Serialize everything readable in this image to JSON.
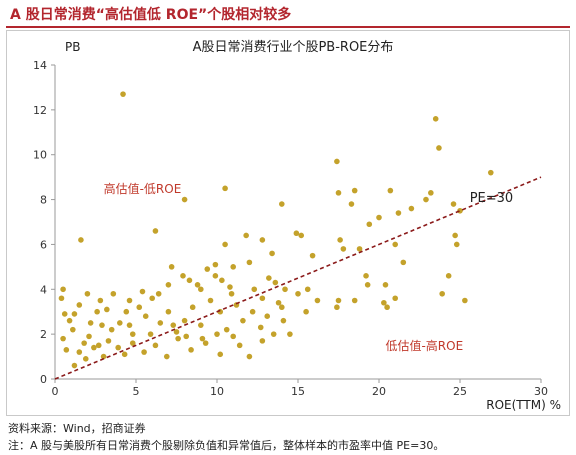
{
  "header": {
    "title": "A 股日常消费“高估值低 ROE”个股相对较多"
  },
  "footer": {
    "source": "资料来源：Wind，招商证券",
    "note": "注：A 股与美股所有日常消费个股剔除负值和异常值后，整体样本的市盈率中值 PE=30。"
  },
  "colors": {
    "accent": "#b3262e",
    "dots": "#c4a22b",
    "trend": "#8b1a1a",
    "text_red": "#c0392b"
  },
  "chart_data": {
    "type": "scatter",
    "title": "A股日常消费行业个股PB-ROE分布",
    "ylabel": "PB",
    "xlabel": "ROE(TTM) %",
    "xlim": [
      0,
      30
    ],
    "ylim": [
      0,
      14
    ],
    "xticks": [
      "0",
      "5",
      "10",
      "15",
      "20",
      "25",
      "30"
    ],
    "yticks": [
      "0",
      "2",
      "4",
      "6",
      "8",
      "10",
      "12",
      "14"
    ],
    "grid": false,
    "trendline": {
      "label": "PE=30",
      "slope": 0.3,
      "intercept": 0
    },
    "annotations": [
      {
        "text": "高估值-低ROE",
        "x": 3,
        "y": 8.3
      },
      {
        "text": "低估值-高ROE",
        "x": 20.4,
        "y": 1.3
      }
    ],
    "points": [
      [
        4.2,
        12.7
      ],
      [
        1.6,
        6.2
      ],
      [
        6.2,
        6.6
      ],
      [
        8.0,
        8.0
      ],
      [
        10.5,
        8.5
      ],
      [
        23.5,
        11.6
      ],
      [
        23.7,
        10.3
      ],
      [
        17.4,
        9.7
      ],
      [
        26.9,
        9.2
      ],
      [
        17.5,
        8.3
      ],
      [
        18.5,
        8.4
      ],
      [
        18.3,
        7.8
      ],
      [
        20.7,
        8.4
      ],
      [
        22.9,
        8.0
      ],
      [
        23.2,
        8.3
      ],
      [
        24.6,
        7.8
      ],
      [
        25.0,
        7.5
      ],
      [
        14.0,
        7.8
      ],
      [
        20.0,
        7.2
      ],
      [
        21.2,
        7.4
      ],
      [
        22.0,
        7.6
      ],
      [
        19.4,
        6.9
      ],
      [
        24.7,
        6.4
      ],
      [
        11.8,
        6.4
      ],
      [
        14.9,
        6.5
      ],
      [
        15.2,
        6.4
      ],
      [
        12.8,
        6.2
      ],
      [
        10.5,
        6.0
      ],
      [
        13.4,
        5.6
      ],
      [
        17.6,
        6.2
      ],
      [
        18.8,
        5.8
      ],
      [
        21.0,
        6.0
      ],
      [
        24.8,
        6.0
      ],
      [
        15.9,
        5.5
      ],
      [
        17.8,
        5.8
      ],
      [
        12.0,
        5.2
      ],
      [
        11.0,
        5.0
      ],
      [
        7.2,
        5.0
      ],
      [
        7.9,
        4.6
      ],
      [
        9.4,
        4.9
      ],
      [
        9.9,
        5.1
      ],
      [
        10.3,
        4.4
      ],
      [
        8.3,
        4.4
      ],
      [
        8.8,
        4.2
      ],
      [
        9.9,
        4.6
      ],
      [
        10.8,
        4.1
      ],
      [
        12.3,
        4.0
      ],
      [
        13.2,
        4.5
      ],
      [
        13.6,
        4.3
      ],
      [
        14.2,
        4.0
      ],
      [
        15.0,
        3.8
      ],
      [
        19.2,
        4.6
      ],
      [
        19.3,
        4.2
      ],
      [
        20.4,
        4.2
      ],
      [
        21.5,
        5.2
      ],
      [
        24.3,
        4.6
      ],
      [
        23.9,
        3.8
      ],
      [
        25.3,
        3.5
      ],
      [
        17.5,
        3.5
      ],
      [
        18.5,
        3.5
      ],
      [
        20.3,
        3.4
      ],
      [
        21.0,
        3.6
      ],
      [
        17.4,
        3.2
      ],
      [
        20.5,
        3.2
      ],
      [
        15.5,
        3.0
      ],
      [
        14.0,
        3.2
      ],
      [
        0.5,
        4.0
      ],
      [
        0.4,
        3.6
      ],
      [
        0.6,
        2.9
      ],
      [
        0.9,
        2.6
      ],
      [
        1.2,
        2.9
      ],
      [
        1.5,
        3.3
      ],
      [
        1.1,
        2.2
      ],
      [
        0.5,
        1.8
      ],
      [
        1.8,
        1.6
      ],
      [
        2.2,
        2.5
      ],
      [
        2.6,
        3.0
      ],
      [
        2.4,
        1.4
      ],
      [
        2.8,
        3.5
      ],
      [
        3.2,
        3.1
      ],
      [
        3.5,
        2.2
      ],
      [
        4.0,
        2.5
      ],
      [
        4.4,
        3.0
      ],
      [
        4.8,
        2.0
      ],
      [
        5.2,
        3.2
      ],
      [
        5.6,
        2.8
      ],
      [
        6.0,
        3.6
      ],
      [
        6.5,
        2.5
      ],
      [
        7.0,
        3.0
      ],
      [
        7.5,
        2.1
      ],
      [
        8.0,
        2.6
      ],
      [
        8.5,
        3.2
      ],
      [
        9.0,
        2.4
      ],
      [
        9.6,
        3.5
      ],
      [
        10.2,
        3.0
      ],
      [
        10.6,
        2.2
      ],
      [
        11.2,
        3.3
      ],
      [
        11.6,
        2.6
      ],
      [
        12.2,
        3.0
      ],
      [
        12.7,
        2.3
      ],
      [
        13.1,
        2.8
      ],
      [
        13.5,
        2.0
      ],
      [
        14.1,
        2.6
      ],
      [
        14.5,
        2.0
      ],
      [
        1.5,
        1.2
      ],
      [
        1.9,
        0.9
      ],
      [
        2.7,
        1.5
      ],
      [
        3.0,
        1.0
      ],
      [
        3.9,
        1.4
      ],
      [
        4.3,
        1.1
      ],
      [
        4.8,
        1.6
      ],
      [
        5.5,
        1.2
      ],
      [
        6.2,
        1.5
      ],
      [
        6.9,
        1.0
      ],
      [
        7.6,
        1.8
      ],
      [
        8.4,
        1.3
      ],
      [
        9.3,
        1.6
      ],
      [
        10.2,
        1.1
      ],
      [
        11.4,
        1.5
      ],
      [
        12.0,
        1.0
      ],
      [
        12.8,
        1.7
      ],
      [
        0.7,
        1.3
      ],
      [
        1.2,
        0.6
      ],
      [
        2.1,
        1.9
      ],
      [
        3.3,
        1.7
      ],
      [
        2.9,
        2.4
      ],
      [
        4.6,
        2.4
      ],
      [
        5.9,
        2.0
      ],
      [
        7.3,
        2.4
      ],
      [
        8.1,
        1.9
      ],
      [
        9.1,
        1.8
      ],
      [
        10.0,
        2.0
      ],
      [
        11.0,
        1.9
      ],
      [
        6.4,
        3.8
      ],
      [
        7.0,
        4.2
      ],
      [
        5.4,
        3.9
      ],
      [
        4.6,
        3.5
      ],
      [
        3.6,
        3.8
      ],
      [
        2.0,
        3.8
      ],
      [
        9.0,
        4.0
      ],
      [
        10.9,
        3.8
      ],
      [
        12.8,
        3.6
      ],
      [
        13.8,
        3.4
      ],
      [
        15.6,
        4.0
      ],
      [
        16.2,
        3.5
      ]
    ]
  }
}
